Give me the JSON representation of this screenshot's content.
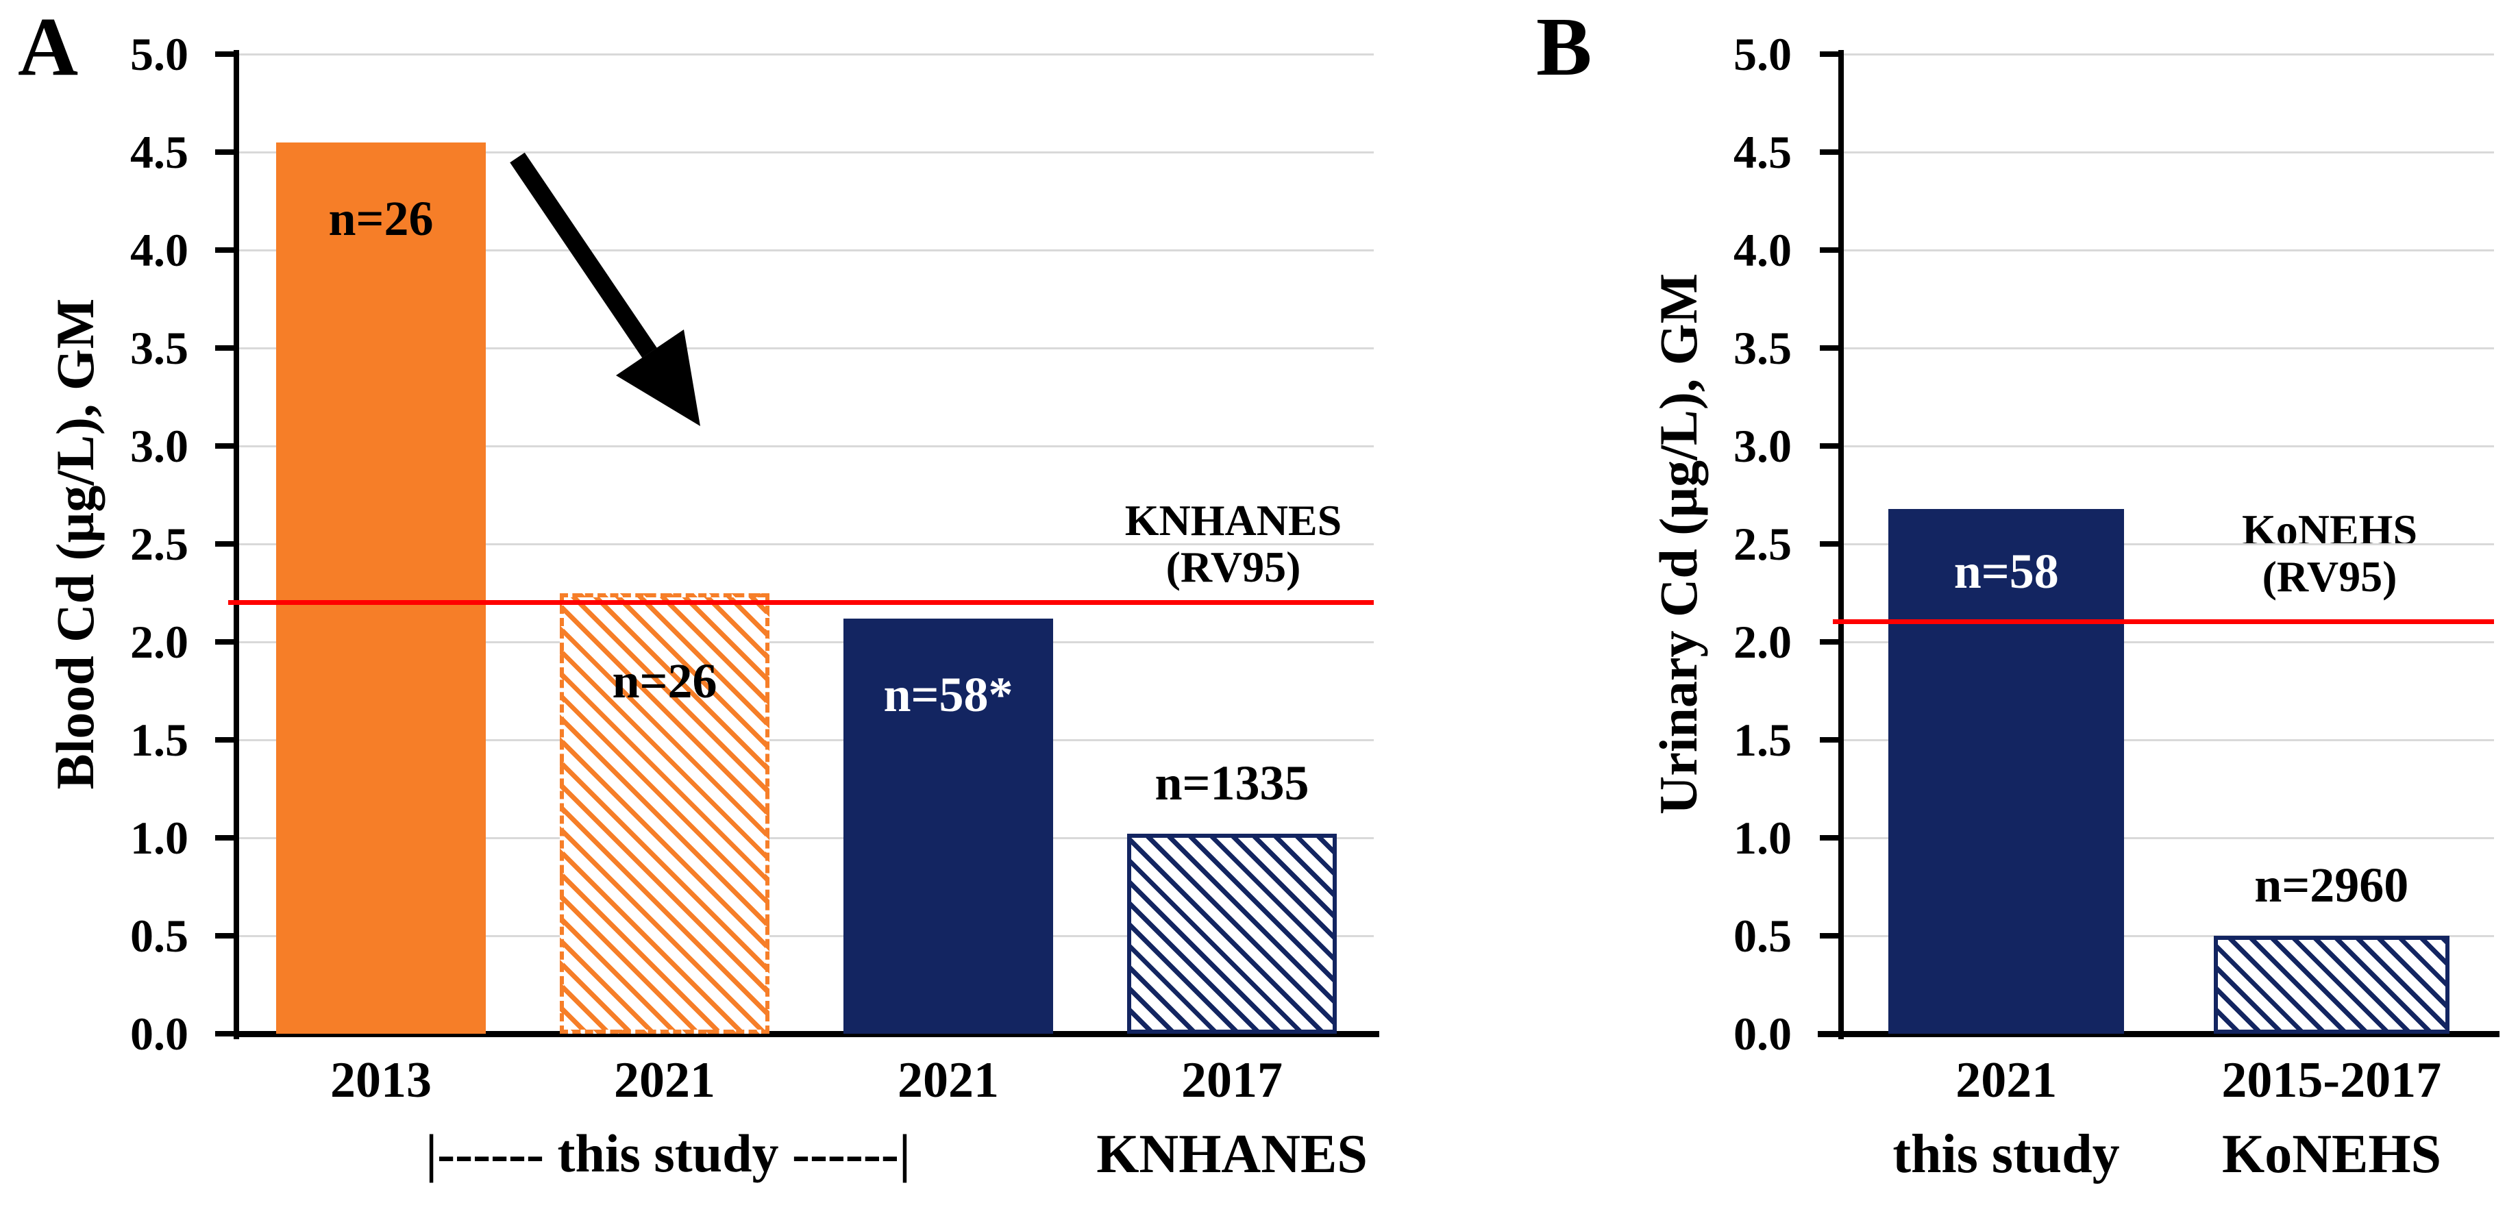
{
  "figure": {
    "background": "#FFFFFF",
    "colors": {
      "orange": "#F67E28",
      "navy": "#132561",
      "red": "#FF0000",
      "grid": "#D9D9D9",
      "axis": "#000000",
      "white_label": "#FFFFFF",
      "black_label": "#000000"
    }
  },
  "chart_data": [
    {
      "type": "bar",
      "panel_letter": "A",
      "ylabel": "Blood Cd (µg/L), GM",
      "ylim": [
        0,
        5
      ],
      "ytick_step": 0.5,
      "grid": true,
      "legend_position": "none",
      "categories": [
        "2013",
        "2021",
        "2021",
        "2017"
      ],
      "values": [
        4.55,
        2.25,
        2.12,
        1.02
      ],
      "bar_labels": [
        "n=26",
        "n=26",
        "n=58*",
        "n=1335"
      ],
      "bar_label_values": [
        4.16,
        1.8,
        1.73,
        1.28
      ],
      "bar_label_colors": [
        "black",
        "black",
        "white",
        "black"
      ],
      "bar_styles": [
        "solid-orange",
        "hatch-orange",
        "solid-navy",
        "hatch-navy"
      ],
      "ref_line": {
        "value": 2.2,
        "label_lines": [
          "KNHANES",
          "(RV95)"
        ],
        "label_values": [
          2.62,
          2.38
        ]
      },
      "annotations": {
        "group_bracket": "|------ this study ------|",
        "source": "KNHANES",
        "arrow": "decline-arrow"
      }
    },
    {
      "type": "bar",
      "panel_letter": "B",
      "ylabel": "Urinary Cd (µg/L), GM",
      "ylim": [
        0,
        5
      ],
      "ytick_step": 0.5,
      "grid": true,
      "legend_position": "none",
      "categories": [
        "2021",
        "2015-2017"
      ],
      "values": [
        2.68,
        0.5
      ],
      "bar_labels": [
        "n=58",
        "n=2960"
      ],
      "bar_label_values": [
        2.36,
        0.76
      ],
      "bar_label_colors": [
        "white",
        "black"
      ],
      "bar_styles": [
        "solid-navy",
        "hatch-navy"
      ],
      "ref_line": {
        "value": 2.1,
        "label_lines": [
          "KoNEHS",
          "(RV95)"
        ],
        "label_values": [
          2.57,
          2.33
        ]
      },
      "annotations": {
        "bottom_labels": [
          "this study",
          "KoNEHS"
        ]
      }
    }
  ]
}
